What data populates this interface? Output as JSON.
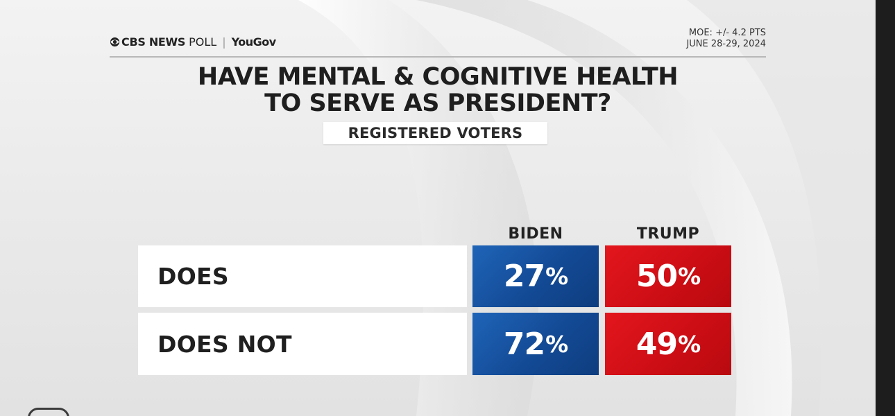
{
  "header": {
    "brand_cbs": "CBS NEWS",
    "brand_poll": "POLL",
    "brand_partner": "YouGov",
    "moe_line": "MOE: +/- 4.2 PTS",
    "date_line": "JUNE 28-29, 2024"
  },
  "colors": {
    "biden": "#1a56a8",
    "trump": "#d0121a"
  },
  "chart_data": {
    "type": "table",
    "title": "HAVE MENTAL & COGNITIVE HEALTH TO SERVE AS PRESIDENT?",
    "title_lines": [
      "HAVE MENTAL & COGNITIVE HEALTH",
      "TO SERVE AS PRESIDENT?"
    ],
    "subtitle": "REGISTERED VOTERS",
    "columns": [
      "BIDEN",
      "TRUMP"
    ],
    "rows": [
      {
        "label": "DOES",
        "values": [
          27,
          50
        ],
        "display": [
          "27",
          "50"
        ]
      },
      {
        "label": "DOES NOT",
        "values": [
          72,
          49
        ],
        "display": [
          "72",
          "49"
        ]
      }
    ],
    "unit": "%"
  }
}
